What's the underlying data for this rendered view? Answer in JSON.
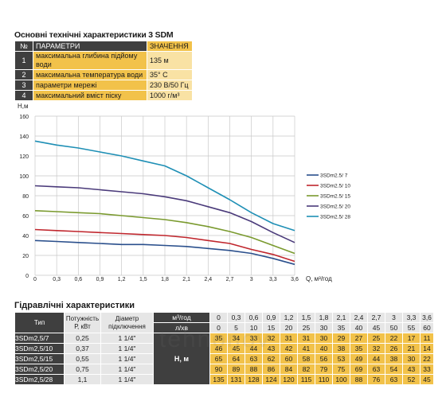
{
  "spec_title": "Основні технічні характеристики 3 SDM",
  "spec_table": {
    "headers": [
      "№",
      "ПАРАМЕТРИ",
      "ЗНАЧЕННЯ"
    ],
    "rows": [
      {
        "n": "1",
        "param": "максимальна глибина підйому води",
        "value": "135 м"
      },
      {
        "n": "2",
        "param": "максимальна температура води",
        "value": "35° С"
      },
      {
        "n": "3",
        "param": "параметри мережі",
        "value": "230 В/50 Гц"
      },
      {
        "n": "4",
        "param": "максимальний вміст піску",
        "value": "1000 г/м³"
      }
    ]
  },
  "chart_data": {
    "type": "line",
    "xlabel": "Q, м³/год",
    "ylabel": "H,м",
    "xlim": [
      0,
      3.6
    ],
    "ylim": [
      0,
      160
    ],
    "x_ticks": [
      "0",
      "0,3",
      "0,6",
      "0,9",
      "1,2",
      "1,5",
      "1,8",
      "2,1",
      "2,4",
      "2,7",
      "3",
      "3,3",
      "3,6"
    ],
    "y_ticks": [
      "0",
      "20",
      "40",
      "60",
      "80",
      "100",
      "120",
      "140",
      "160"
    ],
    "grid": true,
    "legend_position": "right",
    "x": [
      0,
      0.3,
      0.6,
      0.9,
      1.2,
      1.5,
      1.8,
      2.1,
      2.4,
      2.7,
      3,
      3.3,
      3.6
    ],
    "series": [
      {
        "name": "3SDm2.5/ 7",
        "color": "#2a4f8c",
        "values": [
          35,
          34,
          33,
          32,
          31,
          31,
          30,
          29,
          27,
          25,
          22,
          17,
          11
        ]
      },
      {
        "name": "3SDm2.5/ 10",
        "color": "#c0262d",
        "values": [
          46,
          45,
          44,
          43,
          42,
          41,
          40,
          38,
          35,
          32,
          26,
          21,
          14
        ]
      },
      {
        "name": "3SDm2.5/ 15",
        "color": "#7a9a2e",
        "values": [
          65,
          64,
          63,
          62,
          60,
          58,
          56,
          53,
          49,
          44,
          38,
          30,
          22
        ]
      },
      {
        "name": "3SDm2.5/ 20",
        "color": "#4a3a7a",
        "values": [
          90,
          89,
          88,
          86,
          84,
          82,
          79,
          75,
          69,
          63,
          54,
          43,
          33
        ]
      },
      {
        "name": "3SDm2.5/ 28",
        "color": "#1e8fb5",
        "values": [
          135,
          131,
          128,
          124,
          120,
          115,
          110,
          100,
          88,
          76,
          63,
          52,
          45
        ]
      }
    ]
  },
  "hyd_title": "Гідравлічні характеристики",
  "hyd_table": {
    "col_type": "Тип",
    "col_power": "Потужність Р, кВт",
    "col_diam": "Діаметр підключення",
    "q_label": "м³/год",
    "l_label": "л/хв",
    "h_label": "Н, м",
    "q_values": [
      "0",
      "0,3",
      "0,6",
      "0,9",
      "1,2",
      "1,5",
      "1,8",
      "2,1",
      "2,4",
      "2,7",
      "3",
      "3,3",
      "3,6"
    ],
    "l_values": [
      "0",
      "5",
      "10",
      "15",
      "20",
      "25",
      "30",
      "35",
      "40",
      "45",
      "50",
      "55",
      "60"
    ],
    "rows": [
      {
        "type": "3SDm2,5/7",
        "power": "0,25",
        "diam": "1 1/4\"",
        "h": [
          "35",
          "34",
          "33",
          "32",
          "31",
          "31",
          "30",
          "29",
          "27",
          "25",
          "22",
          "17",
          "11"
        ]
      },
      {
        "type": "3SDm2,5/10",
        "power": "0,37",
        "diam": "1 1/4\"",
        "h": [
          "46",
          "45",
          "44",
          "43",
          "42",
          "41",
          "40",
          "38",
          "35",
          "32",
          "26",
          "21",
          "14"
        ]
      },
      {
        "type": "3SDm2,5/15",
        "power": "0,55",
        "diam": "1 1/4\"",
        "h": [
          "65",
          "64",
          "63",
          "62",
          "60",
          "58",
          "56",
          "53",
          "49",
          "44",
          "38",
          "30",
          "22"
        ]
      },
      {
        "type": "3SDm2,5/20",
        "power": "0,75",
        "diam": "1 1/4\"",
        "h": [
          "90",
          "89",
          "88",
          "86",
          "84",
          "82",
          "79",
          "75",
          "69",
          "63",
          "54",
          "43",
          "33"
        ]
      },
      {
        "type": "3SDm2,5/28",
        "power": "1,1",
        "diam": "1 1/4\"",
        "h": [
          "135",
          "131",
          "128",
          "124",
          "120",
          "115",
          "110",
          "100",
          "88",
          "76",
          "63",
          "52",
          "45"
        ]
      }
    ]
  },
  "watermark": "tehnonov"
}
